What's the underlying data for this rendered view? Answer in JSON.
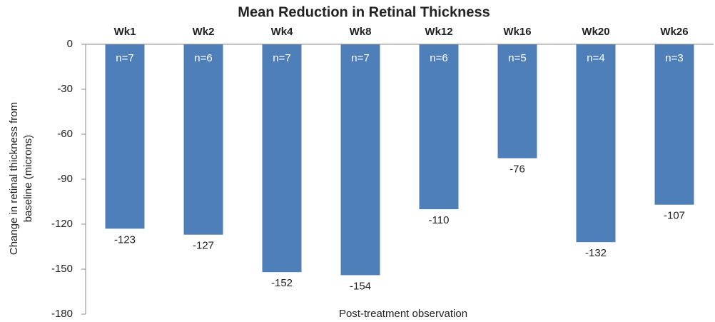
{
  "chart_data": {
    "type": "bar",
    "title": "Mean Reduction in Retinal Thickness",
    "categories": [
      "Wk1",
      "Wk2",
      "Wk4",
      "Wk8",
      "Wk12",
      "Wk16",
      "Wk20",
      "Wk26"
    ],
    "values": [
      -123,
      -127,
      -152,
      -154,
      -110,
      -76,
      -132,
      -107
    ],
    "annotations": [
      "n=7",
      "n=6",
      "n=7",
      "n=7",
      "n=6",
      "n=5",
      "n=4",
      "n=3"
    ],
    "color": "#4f7fb8",
    "xlabel": "Post-treatment observation",
    "ylabel": [
      "Change in retinal thickness from",
      "baseline (microns)"
    ],
    "ylim": [
      -180,
      0
    ],
    "yticks": [
      0,
      -30,
      -60,
      -90,
      -120,
      -150,
      -180
    ]
  }
}
